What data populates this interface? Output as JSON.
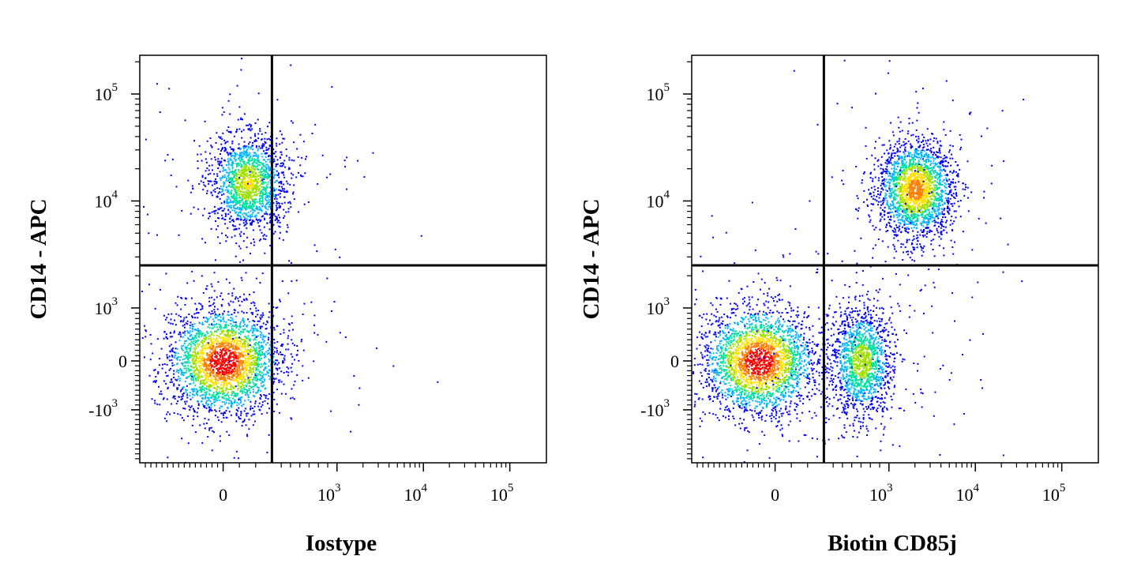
{
  "chart_data": [
    {
      "type": "scatter",
      "style": "flow-cytometry pseudocolor density dot plot",
      "xlabel": "Iostype",
      "ylabel": "CD14 - APC",
      "x_scale": "biexponential",
      "y_scale": "biexponential",
      "xlim": [
        -1500,
        150000
      ],
      "ylim": [
        -3000,
        250000
      ],
      "xticks": [
        {
          "value": 0,
          "base": "0",
          "exp": ""
        },
        {
          "value": 1000,
          "base": "10",
          "exp": "3"
        },
        {
          "value": 10000,
          "base": "10",
          "exp": "4"
        },
        {
          "value": 100000,
          "base": "10",
          "exp": "5"
        }
      ],
      "yticks": [
        {
          "value": -1000,
          "base": "-10",
          "exp": "3"
        },
        {
          "value": 0,
          "base": "0",
          "exp": ""
        },
        {
          "value": 1000,
          "base": "10",
          "exp": "3"
        },
        {
          "value": 10000,
          "base": "10",
          "exp": "4"
        },
        {
          "value": 100000,
          "base": "10",
          "exp": "5"
        }
      ],
      "quadrant_gate": {
        "x": 300,
        "y": 2500
      },
      "populations": [
        {
          "x_center": 150,
          "y_center": 15000,
          "relative_density": 0.6
        },
        {
          "x_center": 0,
          "y_center": 0,
          "relative_density": 1.0
        }
      ]
    },
    {
      "type": "scatter",
      "style": "flow-cytometry pseudocolor density dot plot",
      "xlabel": "Biotin CD85j",
      "ylabel": "CD14 - APC",
      "x_scale": "biexponential",
      "y_scale": "biexponential",
      "xlim": [
        -1500,
        150000
      ],
      "ylim": [
        -3000,
        250000
      ],
      "xticks": [
        {
          "value": 0,
          "base": "0",
          "exp": ""
        },
        {
          "value": 1000,
          "base": "10",
          "exp": "3"
        },
        {
          "value": 10000,
          "base": "10",
          "exp": "4"
        },
        {
          "value": 100000,
          "base": "10",
          "exp": "5"
        }
      ],
      "yticks": [
        {
          "value": -1000,
          "base": "-10",
          "exp": "3"
        },
        {
          "value": 0,
          "base": "0",
          "exp": ""
        },
        {
          "value": 1000,
          "base": "10",
          "exp": "3"
        },
        {
          "value": 10000,
          "base": "10",
          "exp": "4"
        },
        {
          "value": 100000,
          "base": "10",
          "exp": "5"
        }
      ],
      "quadrant_gate": {
        "x": 300,
        "y": 2500
      },
      "populations": [
        {
          "x_center": 2000,
          "y_center": 13000,
          "relative_density": 0.8
        },
        {
          "x_center": -300,
          "y_center": 0,
          "relative_density": 1.0
        },
        {
          "x_center": 700,
          "y_center": 0,
          "relative_density": 0.55
        }
      ]
    }
  ],
  "colors": {
    "axis": "#000000",
    "gate_line": "#000000",
    "density_scale": [
      "#0000ff",
      "#00b4ff",
      "#00e0a0",
      "#a0e000",
      "#ffe000",
      "#ff8000",
      "#ff0000"
    ]
  }
}
